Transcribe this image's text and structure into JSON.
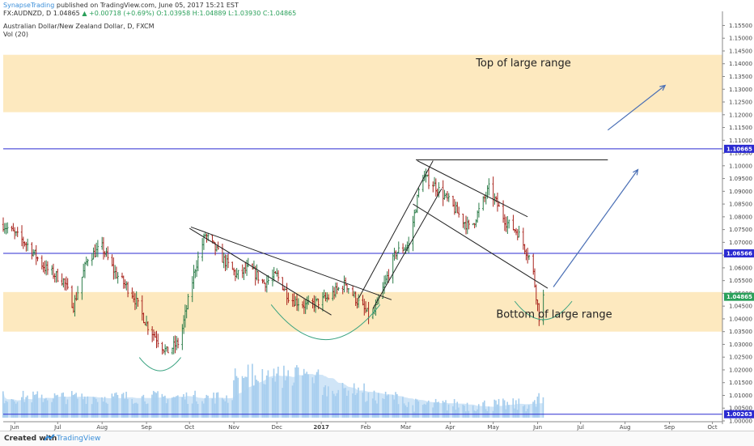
{
  "header": {
    "publisher": "SynapseTrading",
    "published_on": "published on TradingView.com, June 05, 2017 15:21 EST",
    "symbol": "FX:AUDNZD, D",
    "last": "1.04865",
    "change": "▲ +0.00718 (+0.69%)",
    "ohlc_o": "O:1.03958",
    "ohlc_h": "H:1.04889",
    "ohlc_l": "L:1.03930",
    "ohlc_c": "C:1.04865",
    "instrument": "Australian Dollar/New Zealand Dollar, D, FXCM",
    "volume_label": "Vol (20)"
  },
  "footer": {
    "created_with": "Created with",
    "brand": "TradingView"
  },
  "colors": {
    "zone": "#fde9bf",
    "hline": "#2b2bd1",
    "arc": "#3aa381",
    "arrow": "#4a6fb5",
    "bar_up": "#2d7d4a",
    "bar_down": "#a8231c",
    "vol": "#8fc0e8",
    "vol_ma": "#a9d0f0"
  },
  "chart_data": {
    "type": "candlestick",
    "x_axis_labels": [
      "Jun",
      "Jul",
      "Aug",
      "Sep",
      "Oct",
      "Nov",
      "Dec",
      "2017",
      "Feb",
      "Mar",
      "Apr",
      "May",
      "Jun",
      "Jul",
      "Aug",
      "Sep",
      "Oct"
    ],
    "y_ticks": [
      "1.15500",
      "1.15000",
      "1.14500",
      "1.14000",
      "1.13500",
      "1.13000",
      "1.12500",
      "1.12000",
      "1.11500",
      "1.11000",
      "1.10500",
      "1.10000",
      "1.09500",
      "1.09000",
      "1.08500",
      "1.08000",
      "1.07500",
      "1.07000",
      "1.06500",
      "1.06000",
      "1.05500",
      "1.05000",
      "1.04500",
      "1.04000",
      "1.03500",
      "1.03000",
      "1.02500",
      "1.02000",
      "1.01500",
      "1.01000",
      "1.00500",
      "1.00000"
    ],
    "ylim": [
      1.0,
      1.158
    ],
    "price_labels": [
      {
        "text": "1.10665",
        "value": 1.10665,
        "kind": "line"
      },
      {
        "text": "1.06566",
        "value": 1.06566,
        "kind": "line"
      },
      {
        "text": "1.04865",
        "value": 1.04865,
        "kind": "last"
      },
      {
        "text": "1.00263",
        "value": 1.00263,
        "kind": "line"
      }
    ],
    "zones": [
      {
        "label": "Top of large range",
        "from": 1.121,
        "to": 1.1435
      },
      {
        "label": "Bottom of large range",
        "from": 1.035,
        "to": 1.0505
      }
    ],
    "horizontal_lines": [
      1.10665,
      1.06566,
      1.00263
    ],
    "trend_lines": [
      {
        "from": [
          "2016-10-01",
          1.0755
        ],
        "to": [
          "2017-01-08",
          1.0415
        ]
      },
      {
        "from": [
          "2016-10-02",
          1.076
        ],
        "to": [
          "2017-02-19",
          1.0475
        ]
      },
      {
        "from": [
          "2017-01-27",
          1.048
        ],
        "to": [
          "2017-03-20",
          1.102
        ]
      },
      {
        "from": [
          "2017-02-06",
          1.044
        ],
        "to": [
          "2017-03-26",
          1.091
        ]
      },
      {
        "from": [
          "2017-03-08",
          1.1023
        ],
        "to": [
          "2017-07-20",
          1.1023
        ]
      },
      {
        "from": [
          "2017-03-09",
          1.102
        ],
        "to": [
          "2017-05-25",
          1.08
        ]
      },
      {
        "from": [
          "2017-03-06",
          1.085
        ],
        "to": [
          "2017-06-08",
          1.052
        ]
      }
    ],
    "projection_arrows": [
      {
        "from": [
          "2017-06-12",
          1.0525
        ],
        "to": [
          "2017-08-10",
          1.0985
        ]
      },
      {
        "from": [
          "2017-07-20",
          1.114
        ],
        "to": [
          "2017-08-29",
          1.1315
        ]
      }
    ],
    "rounded_bottoms": [
      {
        "start": "2016-08-27",
        "end": "2016-09-25",
        "low": 1.0195
      },
      {
        "start": "2016-11-27",
        "end": "2017-02-11",
        "low": 1.0315
      },
      {
        "start": "2017-05-16",
        "end": "2017-06-25",
        "low": 1.0395
      }
    ],
    "price_path": [
      [
        "2016-05-24",
        1.077
      ],
      [
        "2016-06-10",
        1.069
      ],
      [
        "2016-06-22",
        1.06
      ],
      [
        "2016-07-05",
        1.055
      ],
      [
        "2016-07-12",
        1.045
      ],
      [
        "2016-07-22",
        1.064
      ],
      [
        "2016-08-01",
        1.068
      ],
      [
        "2016-08-10",
        1.058
      ],
      [
        "2016-08-22",
        1.05
      ],
      [
        "2016-09-01",
        1.038
      ],
      [
        "2016-09-15",
        1.027
      ],
      [
        "2016-09-24",
        1.031
      ],
      [
        "2016-10-05",
        1.06
      ],
      [
        "2016-10-12",
        1.073
      ],
      [
        "2016-10-22",
        1.065
      ],
      [
        "2016-11-03",
        1.057
      ],
      [
        "2016-11-12",
        1.06
      ],
      [
        "2016-11-22",
        1.054
      ],
      [
        "2016-12-01",
        1.057
      ],
      [
        "2016-12-10",
        1.048
      ],
      [
        "2016-12-22",
        1.045
      ],
      [
        "2017-01-05",
        1.048
      ],
      [
        "2017-01-18",
        1.054
      ],
      [
        "2017-01-26",
        1.047
      ],
      [
        "2017-02-05",
        1.04
      ],
      [
        "2017-02-12",
        1.05
      ],
      [
        "2017-02-22",
        1.066
      ],
      [
        "2017-03-03",
        1.069
      ],
      [
        "2017-03-12",
        1.096
      ],
      [
        "2017-03-20",
        1.093
      ],
      [
        "2017-03-31",
        1.086
      ],
      [
        "2017-04-15",
        1.075
      ],
      [
        "2017-04-28",
        1.091
      ],
      [
        "2017-05-10",
        1.078
      ],
      [
        "2017-05-18",
        1.074
      ],
      [
        "2017-05-28",
        1.062
      ],
      [
        "2017-06-02",
        1.041
      ],
      [
        "2017-06-05",
        1.04865
      ]
    ]
  }
}
